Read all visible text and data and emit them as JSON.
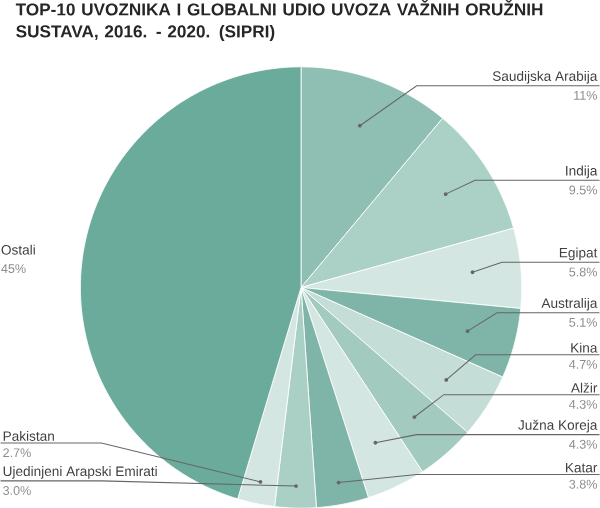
{
  "chart_data": {
    "type": "pie",
    "title": "TOP-10 UVOZNIKA I GLOBALNI UDIO UVOZA VAŽNIH ORUŽNIH SUSTAVA, 2016. - 2020. (SIPRI)",
    "categories": [
      "Saudijska Arabija",
      "Indija",
      "Egipat",
      "Australija",
      "Kina",
      "Alžir",
      "Južna Koreja",
      "Katar",
      "Ujedinjeni Arapski Emirati",
      "Pakistan",
      "Ostali"
    ],
    "values": [
      11,
      9.5,
      5.8,
      5.1,
      4.7,
      4.3,
      4.3,
      3.8,
      3.0,
      2.7,
      45
    ],
    "value_labels": [
      "11%",
      "9.5%",
      "5.8%",
      "5.1%",
      "4.7%",
      "4.3%",
      "4.3%",
      "3.8%",
      "3.0%",
      "2.7%",
      "45%"
    ],
    "colors": [
      "#8fbfb3",
      "#abd0c6",
      "#d3e6e1",
      "#7fb5a8",
      "#c4ddd6",
      "#a3cabf",
      "#d3e6e1",
      "#7fb5a8",
      "#aacfc5",
      "#d3e6e1",
      "#6aab9c"
    ]
  }
}
